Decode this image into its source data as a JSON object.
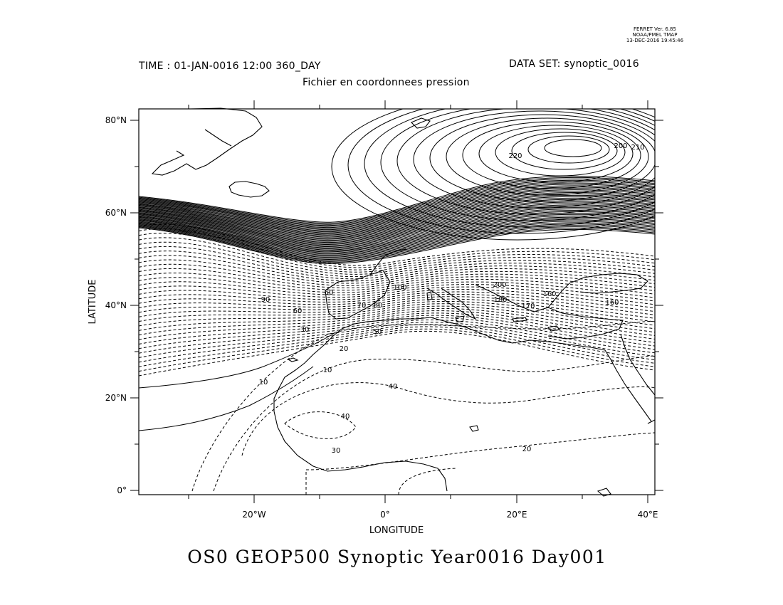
{
  "software": {
    "line1": "FERRET Ver. 6.85",
    "line2": "NOAA/PMEL TMAP",
    "line3": "13-DEC-2016 19:45:46"
  },
  "header": {
    "time": "TIME : 01-JAN-0016 12:00 360_DAY",
    "dataset": "DATA SET: synoptic_0016",
    "subtitle": "Fichier en coordonnees pression"
  },
  "title": "OS0 GEOP500 Synoptic Year0016 Day001",
  "axes": {
    "xlabel": "LONGITUDE",
    "ylabel": "LATITUDE",
    "x_ticks": [
      "20°W",
      "0°",
      "20°E",
      "40°E"
    ],
    "y_ticks": [
      "0°",
      "20°N",
      "40°N",
      "60°N",
      "80°N"
    ]
  },
  "map": {
    "lon_range": [
      -37,
      42
    ],
    "lat_range": [
      -1,
      83
    ],
    "contour_labels": [
      "10",
      "10",
      "20",
      "20",
      "30",
      "30",
      "40",
      "40",
      "50",
      "60",
      "60",
      "70",
      "80",
      "90",
      "100",
      "160",
      "160",
      "170",
      "180",
      "200",
      "200",
      "210",
      "220"
    ]
  },
  "colors": {
    "ink": "#000000",
    "background": "#ffffff"
  }
}
